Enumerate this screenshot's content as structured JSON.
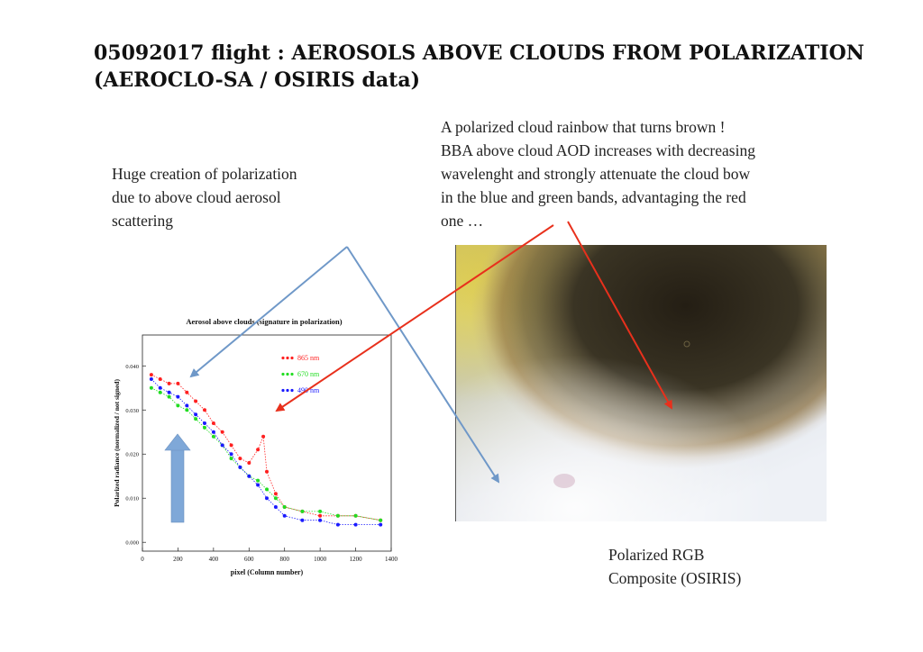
{
  "slide": {
    "title_lines": [
      "05092017 flight : AEROSOLS ABOVE CLOUDS FROM POLARIZATION",
      "(AEROCLO-SA / OSIRIS data)"
    ],
    "left_text_lines": [
      "Huge creation of polarization",
      "due to above cloud aerosol",
      "scattering"
    ],
    "right_text_lines": [
      "A polarized cloud rainbow that turns brown !",
      "BBA above cloud AOD increases with decreasing",
      "wavelenght and strongly attenuate the cloud bow",
      "in the blue and green bands, advantaging the red",
      "one …"
    ],
    "caption_lines": [
      "Polarized RGB",
      "Composite (OSIRIS)"
    ]
  },
  "colors": {
    "annotation_blue": "#6f98c8",
    "annotation_red": "#e8301c",
    "series_865": "#ff2020",
    "series_670": "#22dd22",
    "series_490": "#1a1aff"
  },
  "chart_data": {
    "type": "scatter",
    "title": "Aerosol above clouds (signature in polarization)",
    "xlabel": "pixel (Column number)",
    "ylabel": "Polarized radiance (normalized / not signed)",
    "xlim": [
      0,
      1400
    ],
    "ylim": [
      -0.002,
      0.047
    ],
    "x_ticks": [
      0,
      200,
      400,
      600,
      800,
      1000,
      1200,
      1400
    ],
    "y_ticks": [
      0.0,
      0.01,
      0.02,
      0.03,
      0.04
    ],
    "y_tick_labels": [
      "0.000",
      "0.010",
      "0.020",
      "0.030",
      "0.040"
    ],
    "legend_position": "top-right",
    "series": [
      {
        "name": "865 nm",
        "color": "#ff2020",
        "x": [
          50,
          100,
          150,
          200,
          250,
          300,
          350,
          400,
          450,
          500,
          550,
          600,
          650,
          680,
          700,
          750,
          800,
          900,
          1000,
          1100,
          1200,
          1340
        ],
        "y": [
          0.038,
          0.037,
          0.036,
          0.036,
          0.034,
          0.032,
          0.03,
          0.027,
          0.025,
          0.022,
          0.019,
          0.018,
          0.021,
          0.024,
          0.016,
          0.011,
          0.008,
          0.007,
          0.006,
          0.006,
          0.006,
          0.005
        ]
      },
      {
        "name": "670 nm",
        "color": "#22dd22",
        "x": [
          50,
          100,
          150,
          200,
          250,
          300,
          350,
          400,
          450,
          500,
          550,
          600,
          650,
          700,
          750,
          800,
          900,
          1000,
          1100,
          1200,
          1340
        ],
        "y": [
          0.035,
          0.034,
          0.033,
          0.031,
          0.03,
          0.028,
          0.026,
          0.024,
          0.022,
          0.019,
          0.017,
          0.015,
          0.014,
          0.012,
          0.01,
          0.008,
          0.007,
          0.007,
          0.006,
          0.006,
          0.005
        ]
      },
      {
        "name": "490 nm",
        "color": "#1a1aff",
        "x": [
          50,
          100,
          150,
          200,
          250,
          300,
          350,
          400,
          450,
          500,
          550,
          600,
          650,
          700,
          750,
          800,
          900,
          1000,
          1100,
          1200,
          1340
        ],
        "y": [
          0.037,
          0.035,
          0.034,
          0.033,
          0.031,
          0.029,
          0.027,
          0.025,
          0.022,
          0.02,
          0.017,
          0.015,
          0.013,
          0.01,
          0.008,
          0.006,
          0.005,
          0.005,
          0.004,
          0.004,
          0.004
        ]
      }
    ]
  }
}
